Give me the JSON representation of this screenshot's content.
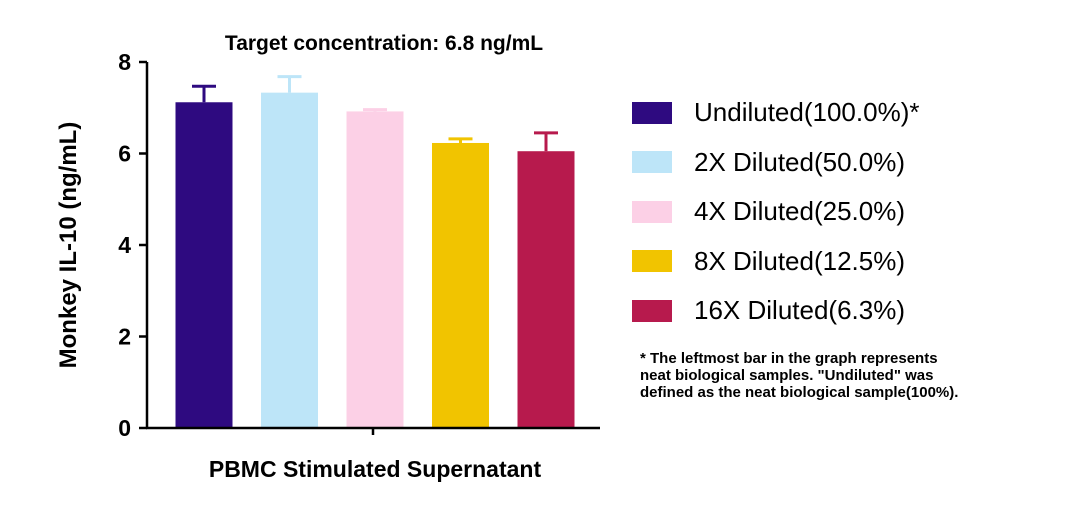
{
  "chart_data": {
    "type": "bar",
    "title": "Target concentration: 6.8 ng/mL",
    "xlabel": "PBMC Stimulated Supernatant",
    "ylabel": "Monkey IL-10 (ng/mL)",
    "ylim": [
      0,
      8
    ],
    "yticks": [
      "0",
      "2",
      "4",
      "6",
      "8"
    ],
    "grid": false,
    "legend_position": "right",
    "series": [
      {
        "name": "Undiluted(100.0%)*",
        "value": 7.12,
        "error": 0.35,
        "color": "#2e0a80"
      },
      {
        "name": "2X Diluted(50.0%)",
        "value": 7.33,
        "error": 0.35,
        "color": "#bde5f8"
      },
      {
        "name": "4X Diluted(25.0%)",
        "value": 6.92,
        "error": 0.04,
        "color": "#fcd0e6"
      },
      {
        "name": "8X Diluted(12.5%)",
        "value": 6.23,
        "error": 0.09,
        "color": "#f1c400"
      },
      {
        "name": "16X Diluted(6.3%)",
        "value": 6.05,
        "error": 0.4,
        "color": "#b71a4d"
      }
    ]
  },
  "footnote": {
    "lines": [
      "* The leftmost bar in the graph represents",
      "neat biological samples. \"Undiluted\" was",
      "defined as the neat biological sample(100%)."
    ]
  }
}
